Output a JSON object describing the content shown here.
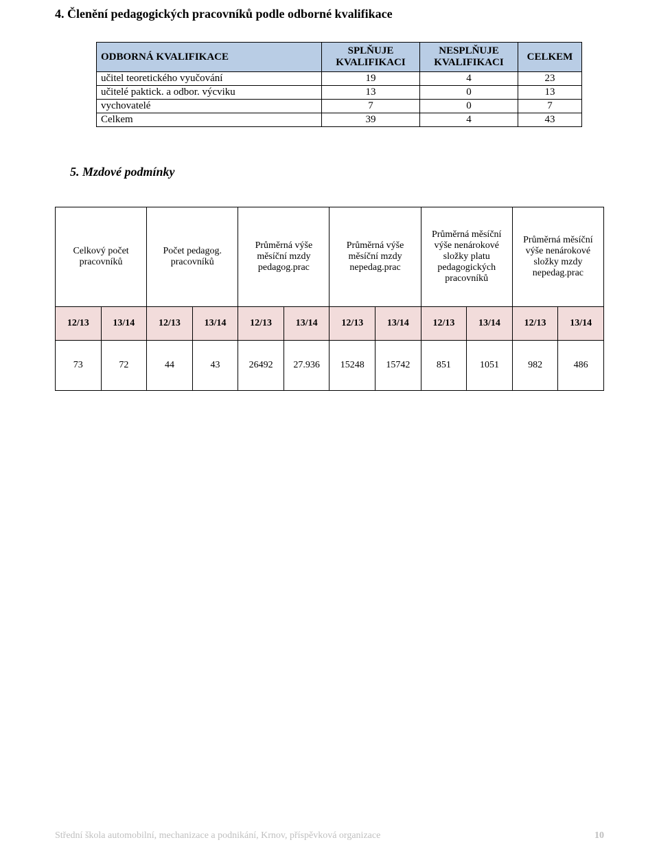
{
  "section4": {
    "title": "4.   Členění pedagogických pracovníků podle odborné kvalifikace",
    "table": {
      "headers": {
        "c0": "ODBORNÁ KVALIFIKACE",
        "c1": "SPLŇUJE KVALIFIKACI",
        "c2": "NESPLŇUJE KVALIFIKACI",
        "c3": "CELKEM"
      },
      "rows": [
        {
          "label": "učitel teoretického vyučování",
          "a": "19",
          "b": "4",
          "c": "23"
        },
        {
          "label": "učitelé paktick. a odbor. výcviku",
          "a": "13",
          "b": "0",
          "c": "13"
        },
        {
          "label": "vychovatelé",
          "a": "7",
          "b": "0",
          "c": "7"
        },
        {
          "label": "Celkem",
          "a": "39",
          "b": "4",
          "c": "43"
        }
      ]
    }
  },
  "section5": {
    "title": "5.  Mzdové podmínky",
    "table": {
      "headers": [
        "Celkový počet pracovníků",
        "Počet pedagog. pracovníků",
        "Průměrná výše měsíční mzdy pedagog.prac",
        "Průměrná výše měsíční mzdy nepedag.prac",
        "Průměrná měsíční výše nenárokové složky platu pedagogických pracovníků",
        "Průměrná měsíční výše nenárokové složky mzdy nepedag.prac"
      ],
      "year_labels": [
        "12/13",
        "13/14",
        "12/13",
        "13/14",
        "12/13",
        "13/14",
        "12/13",
        "13/14",
        "12/13",
        "13/14",
        "12/13",
        "13/14"
      ],
      "data": [
        "73",
        "72",
        "44",
        "43",
        "26492",
        "27.936",
        "15248",
        "15742",
        "851",
        "1051",
        "982",
        "486"
      ]
    }
  },
  "footer": {
    "text": "Střední škola automobilní, mechanizace a podnikání, Krnov, příspěvková organizace",
    "page": "10"
  }
}
